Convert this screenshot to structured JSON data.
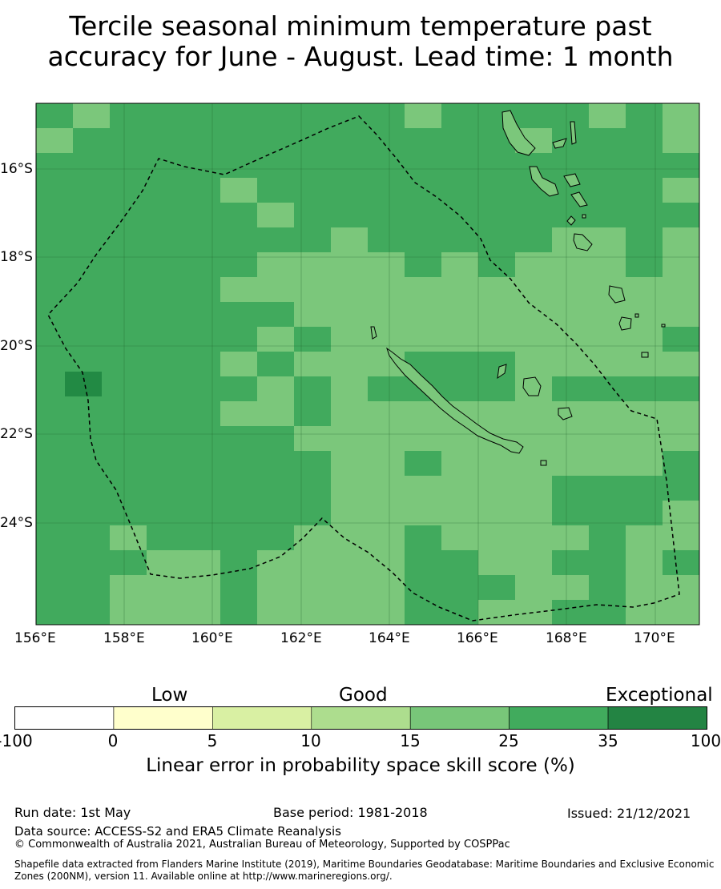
{
  "title_line1": "Tercile seasonal minimum temperature past",
  "title_line2": "accuracy for June - August. Lead time: 1 month",
  "map": {
    "lon_labels": [
      "156°E",
      "158°E",
      "160°E",
      "162°E",
      "164°E",
      "166°E",
      "168°E",
      "170°E"
    ],
    "lat_labels": [
      "16°S",
      "18°S",
      "20°S",
      "22°S",
      "24°S"
    ],
    "colors": {
      "c15_25": "#7bc77b",
      "c25_35": "#41aa5d",
      "c35_100": "#228a44"
    }
  },
  "colorbar": {
    "headings": {
      "low": "Low",
      "good": "Good",
      "exceptional": "Exceptional"
    },
    "ticks": [
      "-100",
      "0",
      "5",
      "10",
      "15",
      "25",
      "35",
      "100"
    ],
    "colors": [
      "#ffffff",
      "#ffffcc",
      "#d9f0a3",
      "#addd8e",
      "#78c679",
      "#41ab5d",
      "#238443"
    ],
    "xlabel": "Linear error in probability space skill score (%)"
  },
  "footer": {
    "run_date": "Run date: 1st May",
    "base_period": "Base period: 1981-2018",
    "issued": "Issued: 21/12/2021",
    "data_source": "Data source: ACCESS-S2 and ERA5 Climate Reanalysis",
    "copyright": "© Commonwealth of Australia 2021, Australian Bureau of Meteorology, Supported by COSPPac",
    "shapefile_line1": "Shapefile data extracted from Flanders Marine Institute (2019), Maritime Boundaries Geodatabase: Maritime Boundaries and Exclusive Economic",
    "shapefile_line2": "Zones (200NM), version 11. Available online at http://www.marineregions.org/."
  }
}
